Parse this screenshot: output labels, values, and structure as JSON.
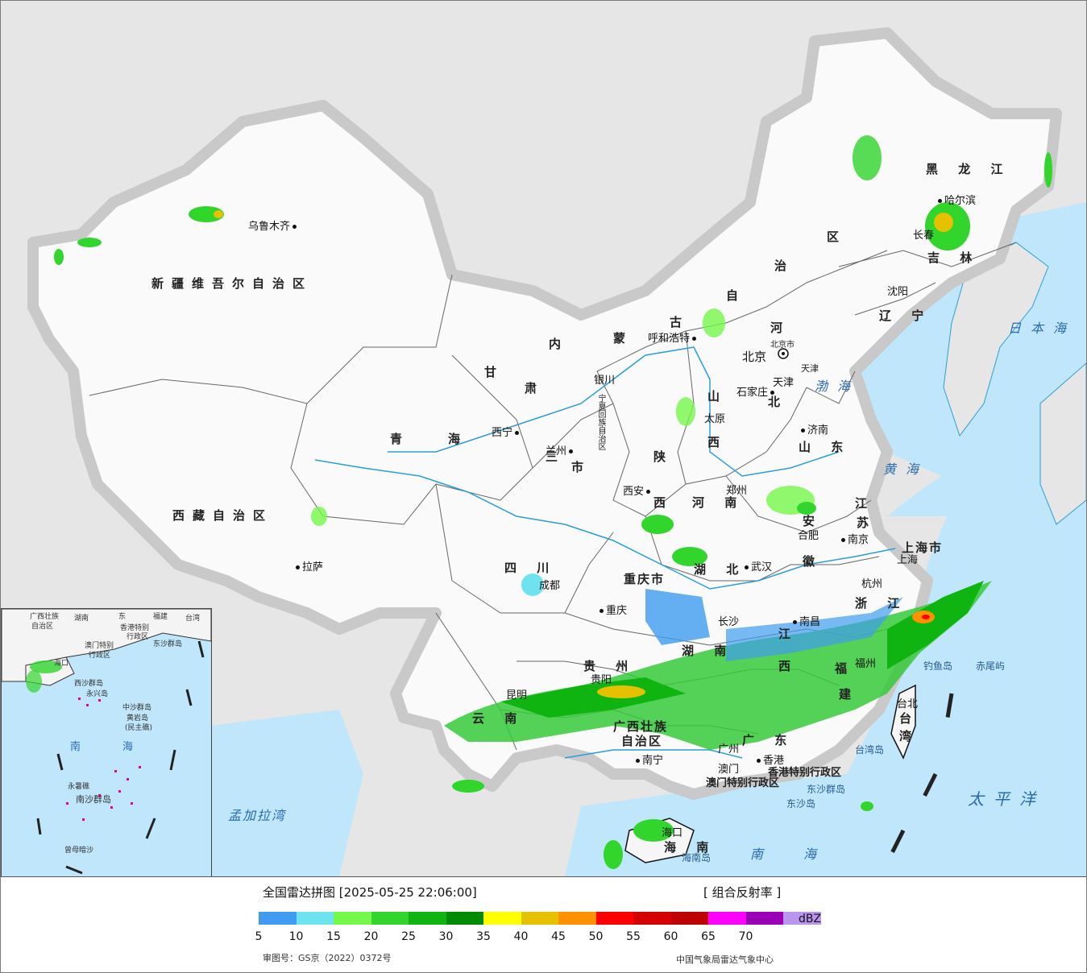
{
  "legend": {
    "title": "全国雷达拼图 [2025-05-25 22:06:00]",
    "product": "[ 组合反射率 ]",
    "unit": "dBZ",
    "ticks": [
      "5",
      "10",
      "15",
      "20",
      "25",
      "30",
      "35",
      "40",
      "45",
      "50",
      "55",
      "60",
      "65",
      "70"
    ],
    "colors": [
      "#3f9cf0",
      "#6ee3f0",
      "#74f84a",
      "#31d52c",
      "#0fb411",
      "#008b05",
      "#ffff00",
      "#e6c100",
      "#ff9000",
      "#ff0000",
      "#d60000",
      "#bf0000",
      "#ff00ff",
      "#9a00b5",
      "#b995ee"
    ],
    "approval": "审图号：GS京（2022）0372号",
    "agency": "中国气象局雷达气象中心"
  },
  "provinces": [
    {
      "name": "新疆维吾尔自治区",
      "id": "xinjiang"
    },
    {
      "name": "西藏自治区",
      "id": "xizang"
    },
    {
      "name": "青",
      "id": "qinghai-1"
    },
    {
      "name": "海",
      "id": "qinghai-2"
    },
    {
      "name": "甘",
      "id": "gansu-1"
    },
    {
      "name": "肃",
      "id": "gansu-2"
    },
    {
      "name": "内",
      "id": "neimeng-1"
    },
    {
      "name": "蒙",
      "id": "neimeng-2"
    },
    {
      "name": "古",
      "id": "neimeng-3"
    },
    {
      "name": "自",
      "id": "neimeng-4"
    },
    {
      "name": "治",
      "id": "neimeng-5"
    },
    {
      "name": "区",
      "id": "neimeng-6"
    },
    {
      "name": "黑 龙 江",
      "id": "heilongjiang"
    },
    {
      "name": "吉 林",
      "id": "jilin"
    },
    {
      "name": "辽 宁",
      "id": "liaoning"
    },
    {
      "name": "河",
      "id": "hebei-1"
    },
    {
      "name": "北",
      "id": "hebei-2"
    },
    {
      "name": "山",
      "id": "shanxi-1"
    },
    {
      "name": "西",
      "id": "shanxi-2"
    },
    {
      "name": "陕",
      "id": "shaanxi-1"
    },
    {
      "name": "西",
      "id": "shaanxi-2"
    },
    {
      "name": "山 东",
      "id": "shandong"
    },
    {
      "name": "河 南",
      "id": "henan"
    },
    {
      "name": "江",
      "id": "jiangsu-1"
    },
    {
      "name": "苏",
      "id": "jiangsu-2"
    },
    {
      "name": "安",
      "id": "anhui-1"
    },
    {
      "name": "徽",
      "id": "anhui-2"
    },
    {
      "name": "四 川",
      "id": "sichuan"
    },
    {
      "name": "重庆市",
      "id": "chongqing"
    },
    {
      "name": "湖 北",
      "id": "hubei"
    },
    {
      "name": "浙 江",
      "id": "zhejiang"
    },
    {
      "name": "湖 南",
      "id": "hunan"
    },
    {
      "name": "江",
      "id": "jiangxi-1"
    },
    {
      "name": "西",
      "id": "jiangxi-2"
    },
    {
      "name": "贵 州",
      "id": "guizhou"
    },
    {
      "name": "云 南",
      "id": "yunnan"
    },
    {
      "name": "广西壮族",
      "id": "guangxi-1"
    },
    {
      "name": "自治区",
      "id": "guangxi-2"
    },
    {
      "name": "广 东",
      "id": "guangdong"
    },
    {
      "name": "福",
      "id": "fujian-1"
    },
    {
      "name": "建",
      "id": "fujian-2"
    },
    {
      "name": "台",
      "id": "taiwan-1"
    },
    {
      "name": "湾",
      "id": "taiwan-2"
    },
    {
      "name": "海 南",
      "id": "hainan"
    },
    {
      "name": "上海市",
      "id": "shanghai"
    },
    {
      "name": "北京市",
      "id": "beijing"
    },
    {
      "name": "天津",
      "id": "tianjin"
    },
    {
      "name": "宁夏回族自治区",
      "id": "ningxia"
    },
    {
      "name": "三",
      "id": "gansu-3"
    },
    {
      "name": "市",
      "id": "shaanxi-3"
    },
    {
      "name": "香港特别行政区",
      "id": "hongkong"
    },
    {
      "name": "澳门特别行政区",
      "id": "macau"
    }
  ],
  "cities": [
    {
      "name": "乌鲁木齐",
      "id": "urumqi"
    },
    {
      "name": "拉萨",
      "id": "lhasa"
    },
    {
      "name": "西宁",
      "id": "xining"
    },
    {
      "name": "兰州",
      "id": "lanzhou"
    },
    {
      "name": "银川",
      "id": "yinchuan"
    },
    {
      "name": "呼和浩特",
      "id": "hohhot"
    },
    {
      "name": "哈尔滨",
      "id": "harbin"
    },
    {
      "name": "长春",
      "id": "changchun"
    },
    {
      "name": "沈阳",
      "id": "shenyang"
    },
    {
      "name": "北京",
      "id": "beijing-city"
    },
    {
      "name": "天津",
      "id": "tianjin-city"
    },
    {
      "name": "石家庄",
      "id": "shijiazhuang"
    },
    {
      "name": "太原",
      "id": "taiyuan"
    },
    {
      "name": "济南",
      "id": "jinan"
    },
    {
      "name": "郑州",
      "id": "zhengzhou"
    },
    {
      "name": "西安",
      "id": "xian"
    },
    {
      "name": "合肥",
      "id": "hefei"
    },
    {
      "name": "南京",
      "id": "nanjing"
    },
    {
      "name": "上海",
      "id": "shanghai-city"
    },
    {
      "name": "杭州",
      "id": "hangzhou"
    },
    {
      "name": "武汉",
      "id": "wuhan"
    },
    {
      "name": "成都",
      "id": "chengdu"
    },
    {
      "name": "重庆",
      "id": "chongqing-city"
    },
    {
      "name": "长沙",
      "id": "changsha"
    },
    {
      "name": "南昌",
      "id": "nanchang"
    },
    {
      "name": "福州",
      "id": "fuzhou"
    },
    {
      "name": "贵阳",
      "id": "guiyang"
    },
    {
      "name": "昆明",
      "id": "kunming"
    },
    {
      "name": "南宁",
      "id": "nanning"
    },
    {
      "name": "广州",
      "id": "guangzhou"
    },
    {
      "name": "香港",
      "id": "hk-city"
    },
    {
      "name": "澳门",
      "id": "macau-city"
    },
    {
      "name": "海口",
      "id": "haikou"
    },
    {
      "name": "台北",
      "id": "taipei"
    }
  ],
  "seas": [
    {
      "name": "日本海",
      "id": "japan-sea"
    },
    {
      "name": "渤海",
      "id": "bohai"
    },
    {
      "name": "黄海",
      "id": "yellow-sea"
    },
    {
      "name": "太平洋",
      "id": "pacific"
    },
    {
      "name": "南海",
      "id": "south-sea"
    },
    {
      "name": "孟加拉湾",
      "id": "bengal"
    }
  ],
  "islands": [
    {
      "name": "钓鱼岛",
      "id": "diaoyu"
    },
    {
      "name": "赤尾屿",
      "id": "chiwei"
    },
    {
      "name": "台湾岛",
      "id": "taiwan-island"
    },
    {
      "name": "东沙群岛",
      "id": "dongsha-1"
    },
    {
      "name": "东沙岛",
      "id": "dongsha-2"
    },
    {
      "name": "海南岛",
      "id": "hainan-island"
    }
  ],
  "inset": {
    "labels": [
      "广西壮族",
      "自治区",
      "湖南",
      "东",
      "福建",
      "台湾",
      "香港特别",
      "行政区",
      "澳门特别",
      "行政区",
      "东沙群岛",
      "海口",
      "西沙群岛",
      "永兴岛",
      "中沙群岛",
      "黄岩岛",
      "(民主礁)",
      "南",
      "海",
      "永暑礁",
      "南沙群岛",
      "曾母暗沙"
    ]
  }
}
